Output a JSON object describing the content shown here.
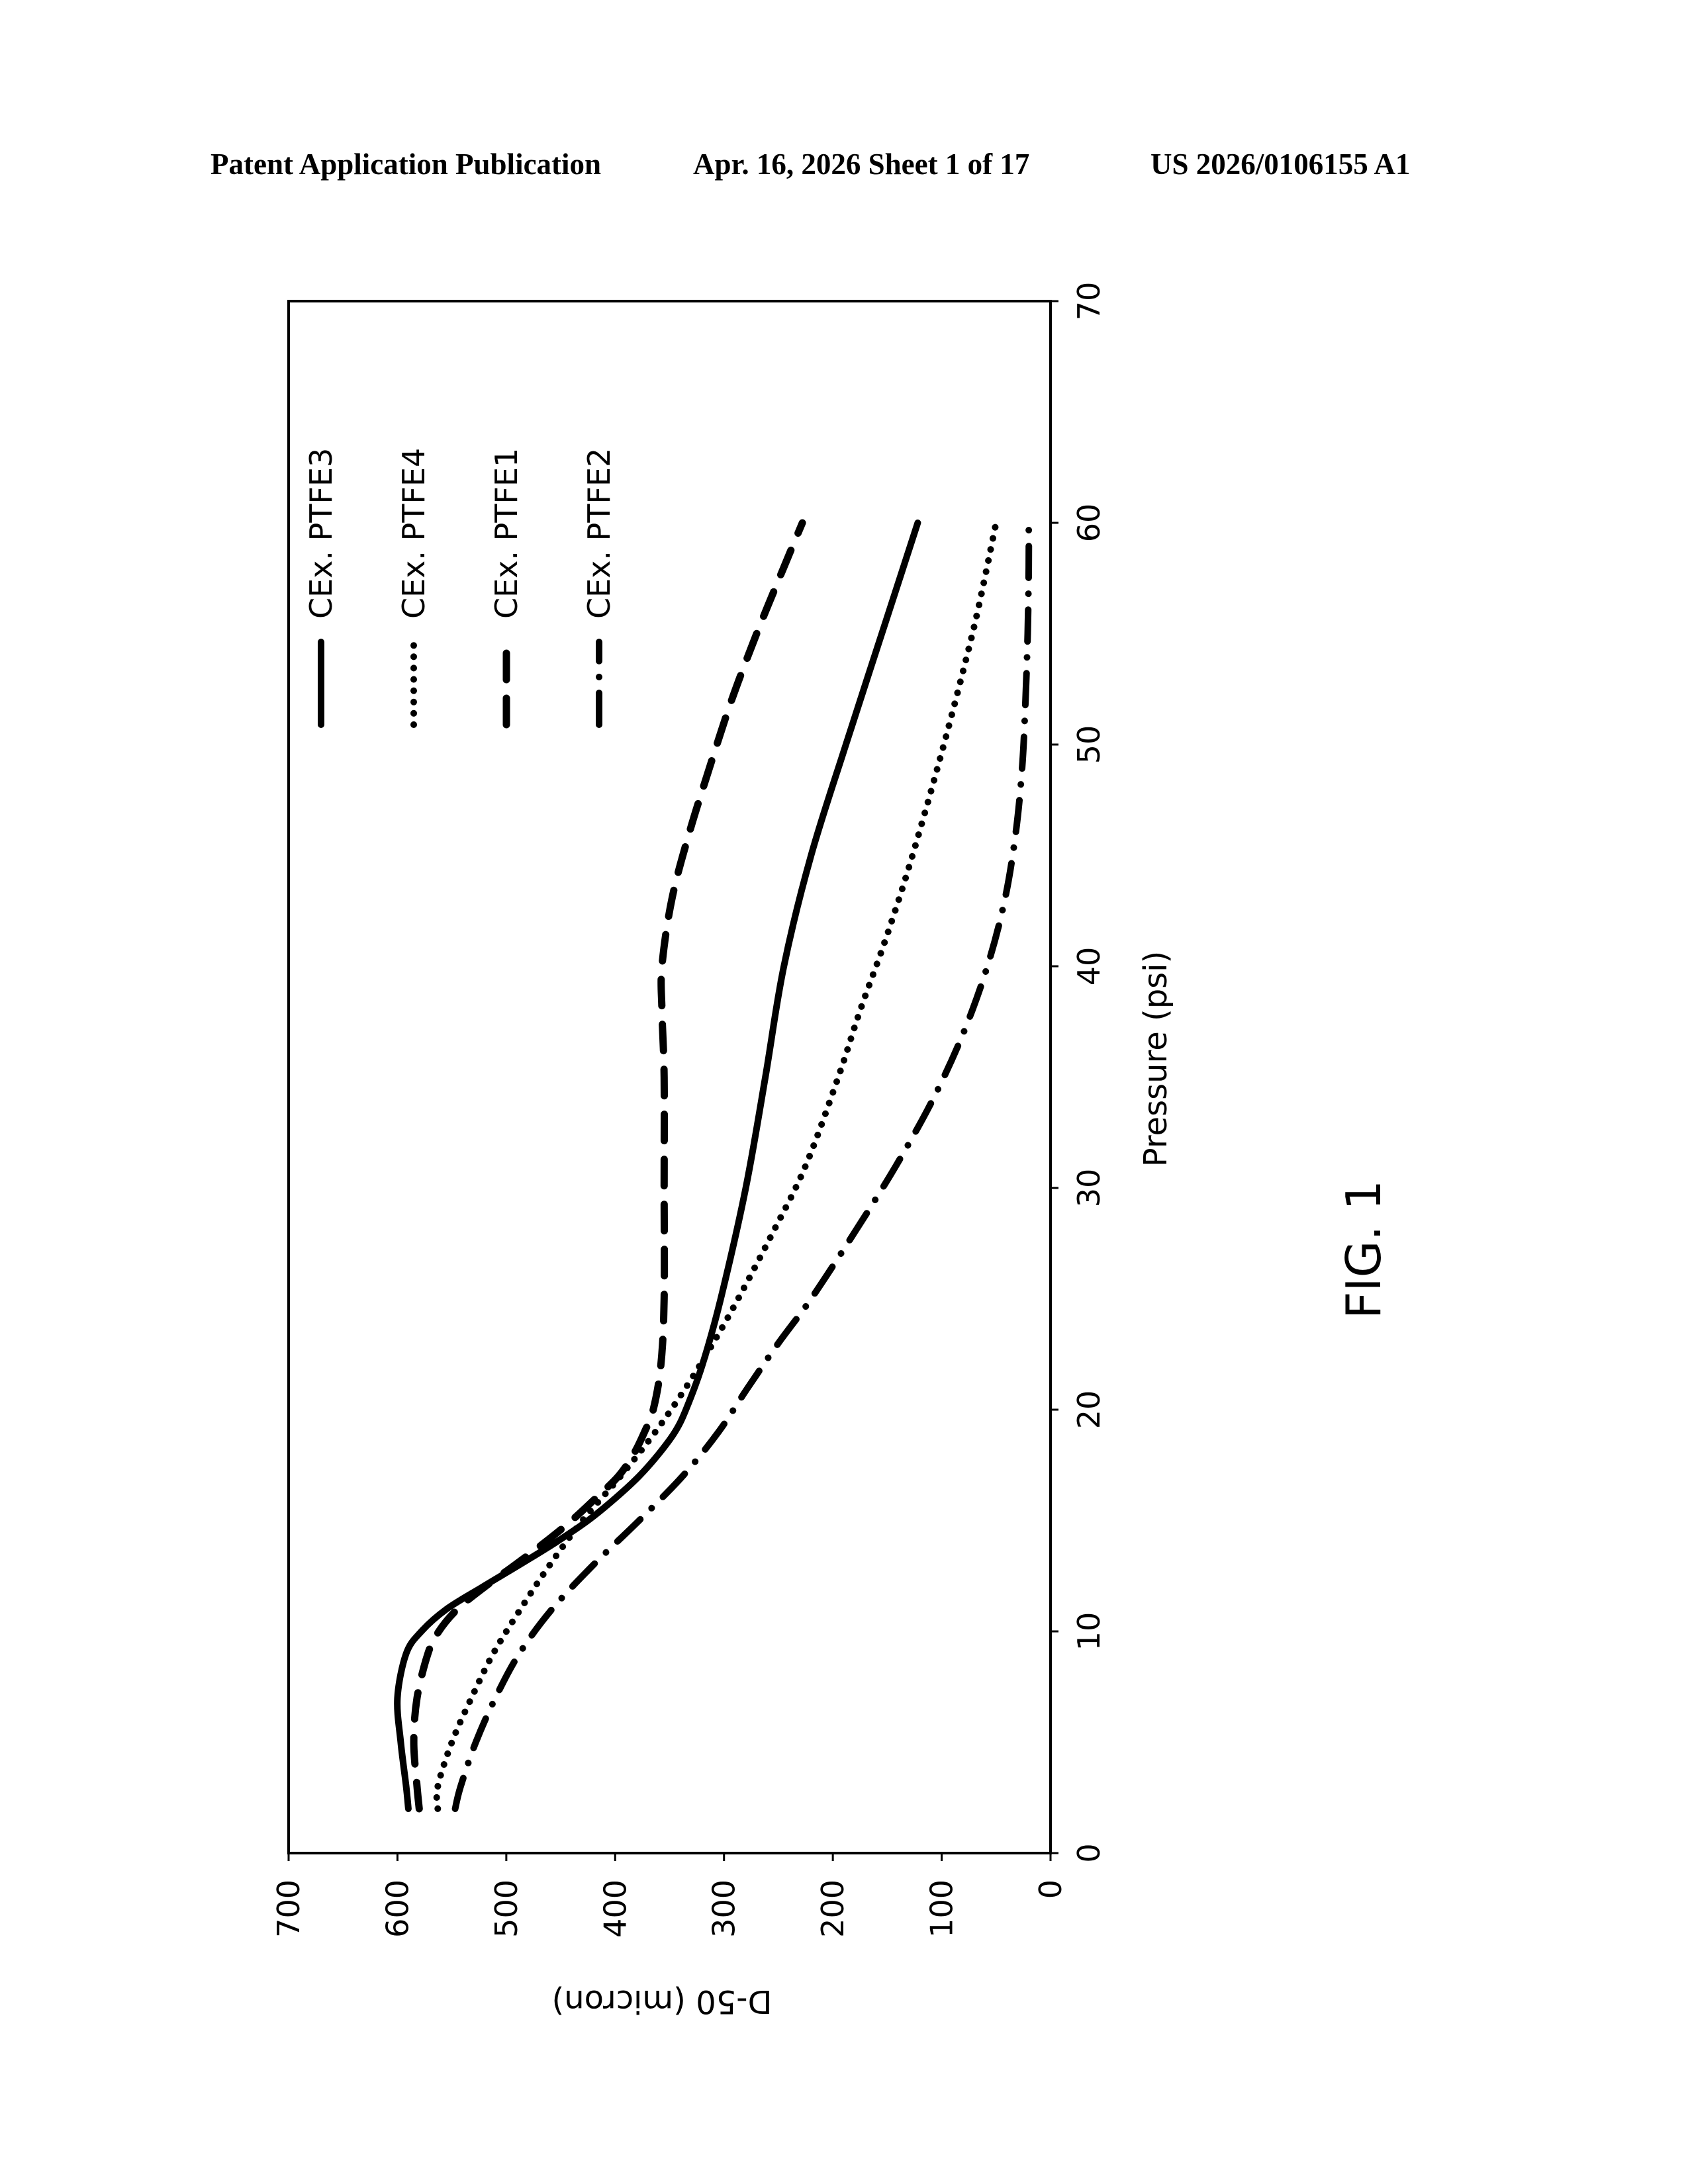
{
  "header": {
    "left": "Patent Application Publication",
    "middle": "Apr. 16, 2026  Sheet 1 of 17",
    "right": "US 2026/0106155 A1"
  },
  "figure_label": "FIG. 1",
  "chart_data": {
    "type": "line",
    "title": "",
    "xlabel": "Pressure (psi)",
    "ylabel": "D-50 (micron)",
    "xlim": [
      0,
      70
    ],
    "ylim": [
      0,
      700
    ],
    "xticks": [
      "0",
      "10",
      "20",
      "30",
      "40",
      "50",
      "60",
      "70"
    ],
    "yticks": [
      "0",
      "100",
      "200",
      "300",
      "400",
      "500",
      "600",
      "700"
    ],
    "grid": false,
    "legend_position": "top-right",
    "series": [
      {
        "name": "CEx. PTFE3",
        "style": "solid",
        "points": [
          [
            2,
            590
          ],
          [
            3,
            592
          ],
          [
            5,
            597
          ],
          [
            7,
            600
          ],
          [
            9,
            592
          ],
          [
            10,
            578
          ],
          [
            11,
            555
          ],
          [
            12,
            522
          ],
          [
            13,
            488
          ],
          [
            14,
            455
          ],
          [
            15,
            425
          ],
          [
            16,
            400
          ],
          [
            17,
            378
          ],
          [
            18,
            360
          ],
          [
            19,
            345
          ],
          [
            20,
            335
          ],
          [
            22,
            320
          ],
          [
            25,
            303
          ],
          [
            30,
            280
          ],
          [
            35,
            262
          ],
          [
            40,
            245
          ],
          [
            45,
            220
          ],
          [
            50,
            188
          ],
          [
            55,
            155
          ],
          [
            60,
            122
          ]
        ]
      },
      {
        "name": "CEx. PTFE4",
        "style": "dotted",
        "points": [
          [
            2,
            563
          ],
          [
            3,
            563
          ],
          [
            5,
            550
          ],
          [
            7,
            532
          ],
          [
            9,
            512
          ],
          [
            11,
            487
          ],
          [
            13,
            460
          ],
          [
            15,
            430
          ],
          [
            17,
            395
          ],
          [
            19,
            363
          ],
          [
            21,
            335
          ],
          [
            23,
            310
          ],
          [
            25,
            287
          ],
          [
            28,
            255
          ],
          [
            31,
            225
          ],
          [
            35,
            195
          ],
          [
            38,
            175
          ],
          [
            41,
            153
          ],
          [
            44,
            133
          ],
          [
            47,
            115
          ],
          [
            50,
            98
          ],
          [
            53,
            82
          ],
          [
            56,
            67
          ],
          [
            60,
            50
          ]
        ]
      },
      {
        "name": "CEx. PTFE1",
        "style": "dashed",
        "points": [
          [
            2,
            580
          ],
          [
            3,
            582
          ],
          [
            5,
            585
          ],
          [
            7,
            582
          ],
          [
            9,
            572
          ],
          [
            10,
            562
          ],
          [
            11,
            545
          ],
          [
            12,
            520
          ],
          [
            13,
            492
          ],
          [
            14,
            465
          ],
          [
            15,
            440
          ],
          [
            16,
            418
          ],
          [
            17,
            397
          ],
          [
            18,
            383
          ],
          [
            19,
            373
          ],
          [
            20,
            365
          ],
          [
            22,
            358
          ],
          [
            25,
            355
          ],
          [
            30,
            355
          ],
          [
            35,
            355
          ],
          [
            38,
            357
          ],
          [
            40,
            357
          ],
          [
            43,
            348
          ],
          [
            46,
            332
          ],
          [
            49,
            313
          ],
          [
            52,
            293
          ],
          [
            55,
            270
          ],
          [
            58,
            245
          ],
          [
            60,
            228
          ]
        ]
      },
      {
        "name": "CEx. PTFE2",
        "style": "dash-dot",
        "points": [
          [
            2,
            547
          ],
          [
            3,
            542
          ],
          [
            5,
            528
          ],
          [
            7,
            510
          ],
          [
            9,
            488
          ],
          [
            11,
            458
          ],
          [
            13,
            420
          ],
          [
            15,
            378
          ],
          [
            17,
            338
          ],
          [
            19,
            305
          ],
          [
            21,
            278
          ],
          [
            23,
            250
          ],
          [
            25,
            220
          ],
          [
            28,
            180
          ],
          [
            31,
            142
          ],
          [
            34,
            108
          ],
          [
            37,
            80
          ],
          [
            40,
            58
          ],
          [
            43,
            42
          ],
          [
            46,
            32
          ],
          [
            49,
            26
          ],
          [
            52,
            23
          ],
          [
            55,
            21
          ],
          [
            58,
            20
          ],
          [
            60,
            20
          ]
        ]
      }
    ]
  }
}
